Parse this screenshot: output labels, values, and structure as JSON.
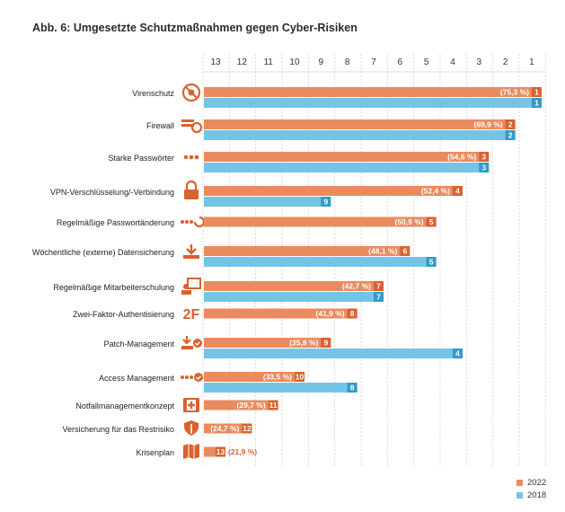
{
  "chart_data": {
    "type": "bar",
    "title": "Abb. 6: Umgesetzte Schutzmaßnahmen gegen Cyber-Risiken",
    "x_ticks": [
      "13",
      "12",
      "11",
      "10",
      "9",
      "8",
      "7",
      "6",
      "5",
      "4",
      "3",
      "2",
      "1"
    ],
    "xlim": [
      13,
      1
    ],
    "legend_position": "bottom-right",
    "series": [
      {
        "name": "2022",
        "color": "#ea8b5f"
      },
      {
        "name": "2018",
        "color": "#75c4e6"
      }
    ],
    "categories": [
      {
        "label": "Virenschutz",
        "icon": "virus-icon",
        "rank_2022": 1,
        "pct_2022": "(75,3 %)",
        "rank_2018": 1
      },
      {
        "label": "Firewall",
        "icon": "firewall-icon",
        "rank_2022": 2,
        "pct_2022": "(69,9 %)",
        "rank_2018": 2
      },
      {
        "label": "Starke Passwörter",
        "icon": "password-dots-icon",
        "rank_2022": 3,
        "pct_2022": "(54,6 %)",
        "rank_2018": 3
      },
      {
        "label": "VPN-Verschlüsselung/-Verbindung",
        "icon": "lock-icon",
        "rank_2022": 4,
        "pct_2022": "(52,4 %)",
        "rank_2018": 9
      },
      {
        "label": "Regelmäßige Passwortänderung",
        "icon": "password-refresh-icon",
        "rank_2022": 5,
        "pct_2022": "(50,9 %)",
        "rank_2018": null
      },
      {
        "label": "Wöchentliche (externe) Datensicherung",
        "icon": "download-icon",
        "rank_2022": 6,
        "pct_2022": "(48,1 %)",
        "rank_2018": 5
      },
      {
        "label": "Regelmäßige Mitarbeiterschulung",
        "icon": "training-icon",
        "rank_2022": 7,
        "pct_2022": "(42,7 %)",
        "rank_2018": 7
      },
      {
        "label": "Zwei-Faktor-Authentisierung",
        "icon": "two-factor-icon",
        "icon_text": "2F",
        "rank_2022": 8,
        "pct_2022": "(41,9 %)",
        "rank_2018": null
      },
      {
        "label": "Patch-Management",
        "icon": "patch-icon",
        "rank_2022": 9,
        "pct_2022": "(35,8 %)",
        "rank_2018": 4
      },
      {
        "label": "Access Management",
        "icon": "access-check-icon",
        "rank_2022": 10,
        "pct_2022": "(33,5 %)",
        "rank_2018": 8
      },
      {
        "label": "Notfallmanagementkonzept",
        "icon": "first-aid-icon",
        "rank_2022": 11,
        "pct_2022": "(29,7 %)",
        "rank_2018": null
      },
      {
        "label": "Versicherung für das Restrisiko",
        "icon": "shield-icon",
        "rank_2022": 12,
        "pct_2022": "(24,7 %)",
        "rank_2018": null
      },
      {
        "label": "Krisenplan",
        "icon": "map-icon",
        "rank_2022": 13,
        "pct_2022": "(21,9 %)",
        "rank_2018": null
      }
    ]
  }
}
